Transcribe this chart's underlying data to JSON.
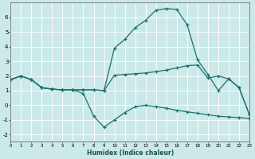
{
  "xlabel": "Humidex (Indice chaleur)",
  "background_color": "#cce9e9",
  "grid_color": "#b0d8d8",
  "line_color": "#1a7070",
  "xlim": [
    0,
    23
  ],
  "ylim": [
    -2.5,
    7.0
  ],
  "xticks": [
    0,
    1,
    2,
    3,
    4,
    5,
    6,
    7,
    8,
    9,
    10,
    11,
    12,
    13,
    14,
    15,
    16,
    17,
    18,
    19,
    20,
    21,
    22,
    23
  ],
  "yticks": [
    -2,
    -1,
    0,
    1,
    2,
    3,
    4,
    5,
    6
  ],
  "series_peak_x": [
    0,
    1,
    2,
    3,
    4,
    5,
    6,
    7,
    8,
    9,
    10,
    11,
    12,
    13,
    14,
    15,
    16,
    17,
    18,
    19,
    20,
    21,
    22,
    23
  ],
  "series_peak_y": [
    1.75,
    2.0,
    1.75,
    1.2,
    1.1,
    1.05,
    1.05,
    1.05,
    1.05,
    1.0,
    3.9,
    4.5,
    5.3,
    5.8,
    6.5,
    6.6,
    6.55,
    5.5,
    3.1,
    2.1,
    1.0,
    1.8,
    1.2,
    -0.65
  ],
  "series_mid_x": [
    0,
    1,
    2,
    3,
    4,
    5,
    6,
    7,
    8,
    9,
    10,
    11,
    12,
    13,
    14,
    15,
    16,
    17,
    18,
    19,
    20,
    21,
    22,
    23
  ],
  "series_mid_y": [
    1.75,
    2.0,
    1.75,
    1.2,
    1.1,
    1.05,
    1.05,
    1.05,
    1.05,
    1.0,
    2.05,
    2.1,
    2.15,
    2.2,
    2.3,
    2.4,
    2.55,
    2.7,
    2.75,
    1.85,
    2.0,
    1.8,
    1.2,
    -0.65
  ],
  "series_low_x": [
    0,
    1,
    2,
    3,
    4,
    5,
    6,
    7,
    8,
    9,
    10,
    11,
    12,
    13,
    14,
    15,
    16,
    17,
    18,
    19,
    20,
    21,
    22,
    23
  ],
  "series_low_y": [
    1.75,
    2.0,
    1.75,
    1.2,
    1.1,
    1.05,
    1.05,
    0.8,
    -0.75,
    -1.5,
    -1.0,
    -0.5,
    -0.1,
    0.0,
    -0.1,
    -0.2,
    -0.35,
    -0.45,
    -0.55,
    -0.65,
    -0.75,
    -0.8,
    -0.85,
    -0.9
  ]
}
